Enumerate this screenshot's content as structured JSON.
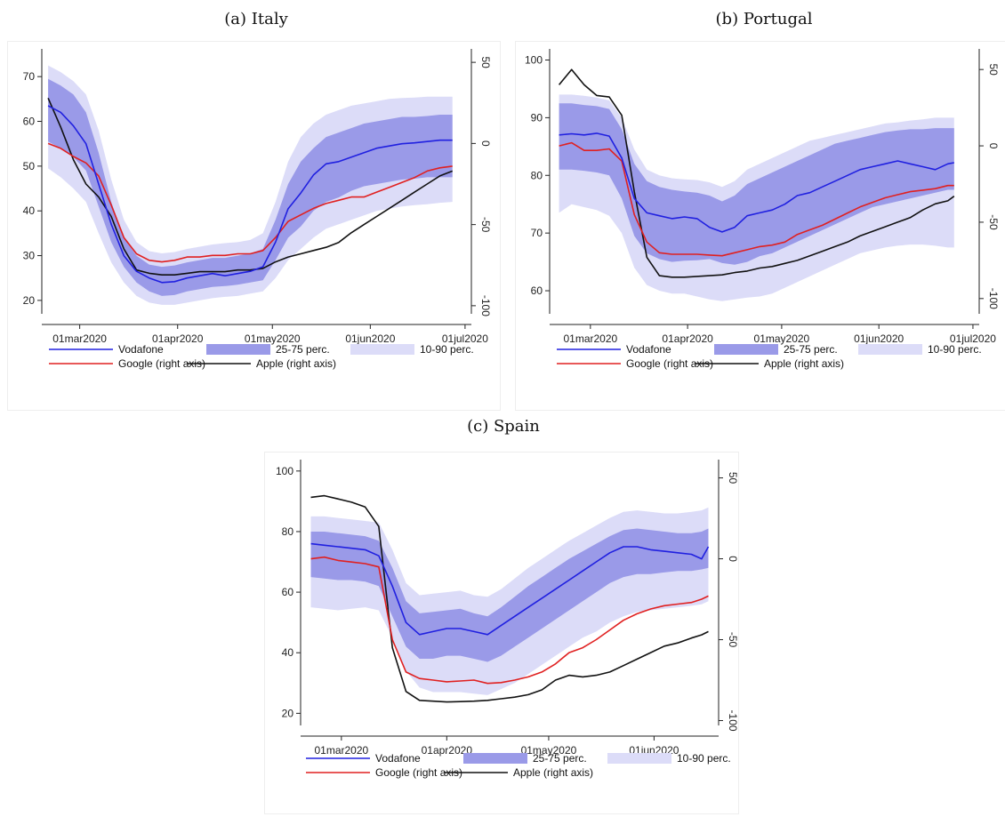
{
  "chart_data": [
    {
      "type": "line",
      "title": "(a) Italy",
      "x": [
        "2020-02-20",
        "2020-02-24",
        "2020-02-28",
        "2020-03-03",
        "2020-03-07",
        "2020-03-11",
        "2020-03-15",
        "2020-03-19",
        "2020-03-23",
        "2020-03-27",
        "2020-03-31",
        "2020-04-04",
        "2020-04-08",
        "2020-04-12",
        "2020-04-16",
        "2020-04-20",
        "2020-04-24",
        "2020-04-28",
        "2020-05-02",
        "2020-05-06",
        "2020-05-10",
        "2020-05-14",
        "2020-05-18",
        "2020-05-22",
        "2020-05-26",
        "2020-05-30",
        "2020-06-03",
        "2020-06-07",
        "2020-06-11",
        "2020-06-15",
        "2020-06-19",
        "2020-06-23",
        "2020-06-27"
      ],
      "xticks": [
        {
          "date": "2020-03-01",
          "label": "01mar2020"
        },
        {
          "date": "2020-04-01",
          "label": "01apr2020"
        },
        {
          "date": "2020-05-01",
          "label": "01may2020"
        },
        {
          "date": "2020-06-01",
          "label": "01jun2020"
        },
        {
          "date": "2020-07-01",
          "label": "01jul2020"
        }
      ],
      "xlim": [
        "2020-02-18",
        "2020-07-03"
      ],
      "ylim": [
        17,
        75
      ],
      "y2lim": [
        -105,
        55
      ],
      "yticks": [
        20,
        30,
        40,
        50,
        60,
        70
      ],
      "y2ticks": [
        -100,
        -50,
        0,
        50
      ],
      "series": [
        {
          "name": "Vodafone",
          "axis": "left",
          "color": "#2020e0",
          "values": [
            63.5,
            62,
            59,
            55,
            46,
            37,
            30,
            26.5,
            25,
            24,
            24.2,
            25,
            25.5,
            26,
            25.5,
            26,
            26.5,
            27.5,
            33,
            40.5,
            44,
            48,
            50.5,
            51,
            52,
            53,
            54,
            54.5,
            55,
            55.2,
            55.5,
            55.8,
            55.8
          ]
        },
        {
          "name": "Google (right axis)",
          "axis": "right",
          "color": "#e02020",
          "values": [
            0,
            -3,
            -8,
            -12,
            -20,
            -38,
            -58,
            -68,
            -72,
            -73,
            -72,
            -70,
            -70,
            -69,
            -69,
            -68,
            -68,
            -66,
            -58,
            -48,
            -44,
            -40,
            -37,
            -35,
            -33,
            -33,
            -30,
            -27,
            -24,
            -21,
            -17,
            -15,
            -14
          ]
        },
        {
          "name": "Apple (right axis)",
          "axis": "right",
          "color": "#111111",
          "values": [
            28,
            10,
            -10,
            -25,
            -33,
            -45,
            -65,
            -78,
            -80,
            -81,
            -81,
            -80,
            -79,
            -79,
            -79,
            -78,
            -78,
            -77,
            -73,
            -70,
            -68,
            -66,
            -64,
            -61,
            -55,
            -50,
            -45,
            -40,
            -35,
            -30,
            -25,
            -20,
            -17
          ]
        },
        {
          "name": "25-75 perc.",
          "axis": "left",
          "color": "#9a9ae8",
          "lower": [
            55.5,
            54,
            52,
            49,
            41,
            33,
            27.5,
            24,
            22,
            21,
            21.2,
            22,
            22.5,
            23,
            23.2,
            23.5,
            24,
            24.5,
            29,
            34,
            36.5,
            40,
            42,
            43,
            44.5,
            45.5,
            46,
            46.5,
            47,
            47.2,
            47.5,
            47.5,
            47.5
          ],
          "upper": [
            69.5,
            68,
            66,
            62,
            53,
            42,
            34,
            30,
            28,
            27.5,
            27.8,
            28.5,
            29,
            29.5,
            29.5,
            30,
            30.5,
            31.5,
            38,
            46,
            51,
            54,
            56.5,
            57.5,
            58.5,
            59.5,
            60,
            60.5,
            61,
            61,
            61.2,
            61.5,
            61.5
          ]
        },
        {
          "name": "10-90 perc.",
          "axis": "left",
          "color": "#dcdcf8",
          "lower": [
            49.5,
            47.5,
            45,
            42,
            35,
            28.5,
            24,
            21,
            19.5,
            19,
            19,
            19.5,
            20,
            20.5,
            20.8,
            21,
            21.5,
            22,
            25,
            29,
            31.5,
            34,
            36,
            37,
            38,
            39,
            40,
            40.5,
            41,
            41.3,
            41.5,
            41.8,
            42
          ],
          "upper": [
            72.5,
            71,
            69,
            66,
            58,
            47,
            38,
            33,
            31,
            30.5,
            30.8,
            31.5,
            32,
            32.5,
            32.8,
            33,
            33.5,
            35,
            42,
            51,
            56.5,
            59.5,
            61.5,
            62.5,
            63.5,
            64,
            64.5,
            65,
            65.2,
            65.3,
            65.5,
            65.5,
            65.5
          ]
        }
      ],
      "legend": {
        "items": [
          "Vodafone",
          "25-75 perc.",
          "10-90 perc.",
          "Google (right axis)",
          "Apple (right axis)"
        ],
        "placement": "bottom"
      }
    },
    {
      "type": "line",
      "title": "(b) Portugal",
      "x": [
        "2020-02-20",
        "2020-02-24",
        "2020-02-28",
        "2020-03-03",
        "2020-03-07",
        "2020-03-11",
        "2020-03-15",
        "2020-03-19",
        "2020-03-23",
        "2020-03-27",
        "2020-03-31",
        "2020-04-04",
        "2020-04-08",
        "2020-04-12",
        "2020-04-16",
        "2020-04-20",
        "2020-04-24",
        "2020-04-28",
        "2020-05-02",
        "2020-05-06",
        "2020-05-10",
        "2020-05-14",
        "2020-05-18",
        "2020-05-22",
        "2020-05-26",
        "2020-05-30",
        "2020-06-03",
        "2020-06-07",
        "2020-06-11",
        "2020-06-15",
        "2020-06-19",
        "2020-06-23",
        "2020-06-25"
      ],
      "xticks": [
        {
          "date": "2020-03-01",
          "label": "01mar2020"
        },
        {
          "date": "2020-04-01",
          "label": "01apr2020"
        },
        {
          "date": "2020-05-01",
          "label": "01may2020"
        },
        {
          "date": "2020-06-01",
          "label": "01jun2020"
        },
        {
          "date": "2020-07-01",
          "label": "01jul2020"
        }
      ],
      "xlim": [
        "2020-02-17",
        "2020-07-03"
      ],
      "ylim": [
        56,
        101
      ],
      "y2lim": [
        -110,
        60
      ],
      "yticks": [
        60,
        70,
        80,
        90,
        100
      ],
      "y2ticks": [
        -100,
        -50,
        0,
        50
      ],
      "series": [
        {
          "name": "Vodafone",
          "axis": "left",
          "color": "#2020e0",
          "values": [
            87,
            87.2,
            87,
            87.3,
            86.8,
            83,
            76,
            73.5,
            73,
            72.5,
            72.8,
            72.5,
            71,
            70.2,
            71,
            73,
            73.5,
            74,
            75,
            76.5,
            77,
            78,
            79,
            80,
            81,
            81.5,
            82,
            82.5,
            82,
            81.5,
            81,
            82,
            82.2
          ]
        },
        {
          "name": "Google (right axis)",
          "axis": "right",
          "color": "#e02020",
          "values": [
            0,
            2,
            -3,
            -3,
            -2,
            -10,
            -45,
            -63,
            -70,
            -71,
            -71,
            -71,
            -71.5,
            -72,
            -70,
            -68,
            -66,
            -65,
            -63,
            -58,
            -55,
            -52,
            -48,
            -44,
            -40,
            -37,
            -34,
            -32,
            -30,
            -29,
            -28,
            -26,
            -26
          ]
        },
        {
          "name": "Apple (right axis)",
          "axis": "right",
          "color": "#111111",
          "values": [
            40,
            50,
            40,
            33,
            32,
            20,
            -30,
            -73,
            -85,
            -86,
            -86,
            -85.5,
            -85,
            -84.5,
            -83,
            -82,
            -80,
            -79,
            -77,
            -75,
            -72,
            -69,
            -66,
            -63,
            -59,
            -56,
            -53,
            -50,
            -47,
            -42,
            -38,
            -36,
            -33
          ]
        },
        {
          "name": "25-75 perc.",
          "axis": "left",
          "color": "#9a9ae8",
          "lower": [
            81,
            81,
            80.8,
            80.5,
            80,
            76,
            69.5,
            66.5,
            65.5,
            65,
            65.2,
            65.3,
            65.5,
            64.8,
            64.5,
            65,
            66,
            66.5,
            67.5,
            68.5,
            69.5,
            70.5,
            71.5,
            72.5,
            73.5,
            74.5,
            75,
            75.5,
            76,
            76.5,
            77,
            77.5,
            77.5
          ],
          "upper": [
            92.5,
            92.5,
            92.2,
            92,
            91.5,
            88,
            82,
            79,
            78,
            77.5,
            77.2,
            77,
            76.5,
            75.5,
            76.5,
            78.5,
            79.5,
            80.5,
            81.5,
            82.5,
            83.5,
            84.5,
            85.5,
            86,
            86.5,
            87,
            87.5,
            87.8,
            88,
            88,
            88.2,
            88.2,
            88.2
          ]
        },
        {
          "name": "10-90 perc.",
          "axis": "left",
          "color": "#dcdcf8",
          "lower": [
            73.5,
            75,
            74.5,
            74,
            73,
            70,
            64,
            61,
            60,
            59.5,
            59.5,
            59,
            58.5,
            58.2,
            58.5,
            58.8,
            59,
            59.5,
            60.5,
            61.5,
            62.5,
            63.5,
            64.5,
            65.5,
            66.5,
            67,
            67.5,
            67.8,
            68,
            68,
            67.8,
            67.5,
            67.5
          ],
          "upper": [
            94,
            94,
            93.8,
            93.5,
            93,
            90,
            84.5,
            81,
            80,
            79.5,
            79.3,
            79.2,
            78.8,
            78,
            79,
            81,
            82,
            83,
            84,
            85,
            86,
            86.5,
            87,
            87.5,
            88,
            88.5,
            89,
            89.2,
            89.5,
            89.7,
            90,
            90,
            90
          ]
        }
      ],
      "legend": {
        "items": [
          "Vodafone",
          "25-75 perc.",
          "10-90 perc.",
          "Google (right axis)",
          "Apple (right axis)"
        ],
        "placement": "bottom"
      }
    },
    {
      "type": "line",
      "title": "(c) Spain",
      "x": [
        "2020-02-21",
        "2020-02-25",
        "2020-02-29",
        "2020-03-04",
        "2020-03-08",
        "2020-03-12",
        "2020-03-16",
        "2020-03-20",
        "2020-03-24",
        "2020-03-28",
        "2020-04-01",
        "2020-04-05",
        "2020-04-09",
        "2020-04-13",
        "2020-04-17",
        "2020-04-21",
        "2020-04-25",
        "2020-04-29",
        "2020-05-03",
        "2020-05-07",
        "2020-05-11",
        "2020-05-15",
        "2020-05-19",
        "2020-05-23",
        "2020-05-27",
        "2020-05-31",
        "2020-06-04",
        "2020-06-08",
        "2020-06-12",
        "2020-06-15",
        "2020-06-17"
      ],
      "xticks": [
        {
          "date": "2020-03-01",
          "label": "01mar2020"
        },
        {
          "date": "2020-04-01",
          "label": "01apr2020"
        },
        {
          "date": "2020-05-01",
          "label": "01may2020"
        },
        {
          "date": "2020-06-01",
          "label": "01jun2020"
        }
      ],
      "xlim": [
        "2020-02-18",
        "2020-06-20"
      ],
      "ylim": [
        16,
        102
      ],
      "y2lim": [
        -103,
        58
      ],
      "yticks": [
        20,
        40,
        60,
        80,
        100
      ],
      "y2ticks": [
        -100,
        -50,
        0,
        50
      ],
      "series": [
        {
          "name": "Vodafone",
          "axis": "left",
          "color": "#2020e0",
          "values": [
            76,
            75.5,
            75,
            74.5,
            74,
            72,
            62,
            50,
            46,
            47,
            48,
            48,
            47,
            46,
            49,
            52,
            55,
            58,
            61,
            64,
            67,
            70,
            73,
            75,
            75,
            74,
            73.5,
            73,
            72.5,
            71,
            75
          ]
        },
        {
          "name": "Google (right axis)",
          "axis": "right",
          "color": "#e02020",
          "values": [
            0,
            1,
            -1,
            -2,
            -3,
            -5,
            -50,
            -70,
            -74,
            -75,
            -76,
            -75.5,
            -75,
            -77,
            -76.5,
            -75,
            -73,
            -70,
            -65,
            -58,
            -55,
            -50,
            -44,
            -38,
            -34,
            -31,
            -29,
            -28,
            -27,
            -25,
            -23
          ]
        },
        {
          "name": "Apple (right axis)",
          "axis": "right",
          "color": "#111111",
          "values": [
            38,
            39,
            37,
            35,
            32,
            20,
            -55,
            -82,
            -87.5,
            -88,
            -88.5,
            -88.3,
            -88,
            -87.5,
            -86.5,
            -85.5,
            -84,
            -81,
            -75,
            -72,
            -73,
            -72,
            -70,
            -66,
            -62,
            -58,
            -54,
            -52,
            -49,
            -47,
            -45
          ]
        },
        {
          "name": "25-75 perc.",
          "axis": "left",
          "color": "#9a9ae8",
          "lower": [
            65,
            64.5,
            64,
            64,
            63.5,
            62,
            52,
            42,
            38,
            38,
            39,
            39,
            38,
            37,
            39,
            42,
            45,
            48,
            51,
            54,
            57,
            60,
            63,
            65,
            66,
            66,
            66.5,
            67,
            67,
            67.5,
            68
          ],
          "upper": [
            80,
            80,
            79.5,
            79,
            78.5,
            77,
            68,
            57,
            53,
            53.5,
            54,
            54.5,
            53,
            52,
            55,
            58.5,
            62,
            65,
            68,
            71,
            73.5,
            76,
            78.5,
            80.5,
            81,
            80.5,
            80,
            79.5,
            79.5,
            80,
            81
          ]
        },
        {
          "name": "10-90 perc.",
          "axis": "left",
          "color": "#dcdcf8",
          "lower": [
            55,
            54.5,
            54,
            54.5,
            55,
            54,
            45,
            34,
            28.5,
            27,
            27,
            27,
            26.5,
            26,
            28,
            30,
            33,
            36,
            39,
            42,
            45,
            47,
            50,
            52,
            53.5,
            54,
            54.5,
            55,
            55.5,
            56,
            57
          ],
          "upper": [
            85,
            85,
            84.5,
            84,
            83.5,
            83,
            74,
            63,
            59,
            59.5,
            60,
            60.5,
            59,
            58.5,
            61,
            64.5,
            68,
            71,
            74,
            77,
            79.5,
            82,
            84.5,
            86.5,
            87,
            86.5,
            86,
            86,
            86.5,
            87,
            88
          ]
        }
      ],
      "legend": {
        "items": [
          "Vodafone",
          "25-75 perc.",
          "10-90 perc.",
          "Google (right axis)",
          "Apple (right axis)"
        ],
        "placement": "bottom"
      }
    }
  ]
}
